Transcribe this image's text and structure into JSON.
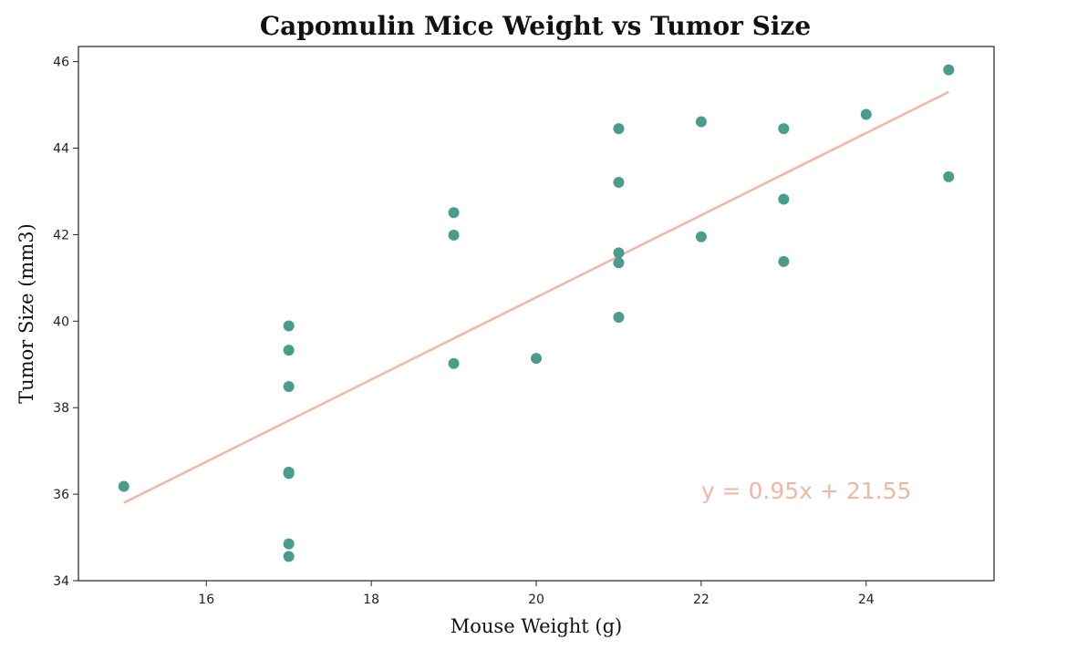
{
  "chart_data": {
    "type": "scatter",
    "title": "Capomulin Mice Weight vs Tumor Size",
    "xlabel": "Mouse Weight (g)",
    "ylabel": "Tumor Size (mm3)",
    "xlim": [
      14.45,
      25.55
    ],
    "ylim": [
      34,
      46.35
    ],
    "xticks": [
      16,
      18,
      20,
      22,
      24
    ],
    "yticks": [
      34,
      36,
      38,
      40,
      42,
      44,
      46
    ],
    "grid": false,
    "point_color": "#4a9d8a",
    "line_color": "#eeb7a6",
    "series": [
      {
        "type": "scatter",
        "points": [
          {
            "x": 15,
            "y": 36.18
          },
          {
            "x": 17,
            "y": 39.89
          },
          {
            "x": 17,
            "y": 39.33
          },
          {
            "x": 17,
            "y": 38.49
          },
          {
            "x": 17,
            "y": 36.51
          },
          {
            "x": 17,
            "y": 36.48
          },
          {
            "x": 17,
            "y": 34.85
          },
          {
            "x": 17,
            "y": 34.56
          },
          {
            "x": 19,
            "y": 42.51
          },
          {
            "x": 19,
            "y": 41.99
          },
          {
            "x": 19,
            "y": 39.02
          },
          {
            "x": 20,
            "y": 39.14
          },
          {
            "x": 21,
            "y": 44.45
          },
          {
            "x": 21,
            "y": 43.21
          },
          {
            "x": 21,
            "y": 41.58
          },
          {
            "x": 21,
            "y": 41.35
          },
          {
            "x": 21,
            "y": 40.09
          },
          {
            "x": 22,
            "y": 44.61
          },
          {
            "x": 22,
            "y": 41.95
          },
          {
            "x": 23,
            "y": 44.45
          },
          {
            "x": 23,
            "y": 42.82
          },
          {
            "x": 23,
            "y": 41.38
          },
          {
            "x": 24,
            "y": 44.78
          },
          {
            "x": 25,
            "y": 45.81
          },
          {
            "x": 25,
            "y": 43.34
          }
        ]
      },
      {
        "type": "line",
        "slope": 0.95,
        "intercept": 21.55,
        "x_range": [
          15,
          25
        ]
      }
    ],
    "annotation": {
      "text": "y = 0.95x + 21.55",
      "x": 22,
      "y": 35.9
    }
  }
}
